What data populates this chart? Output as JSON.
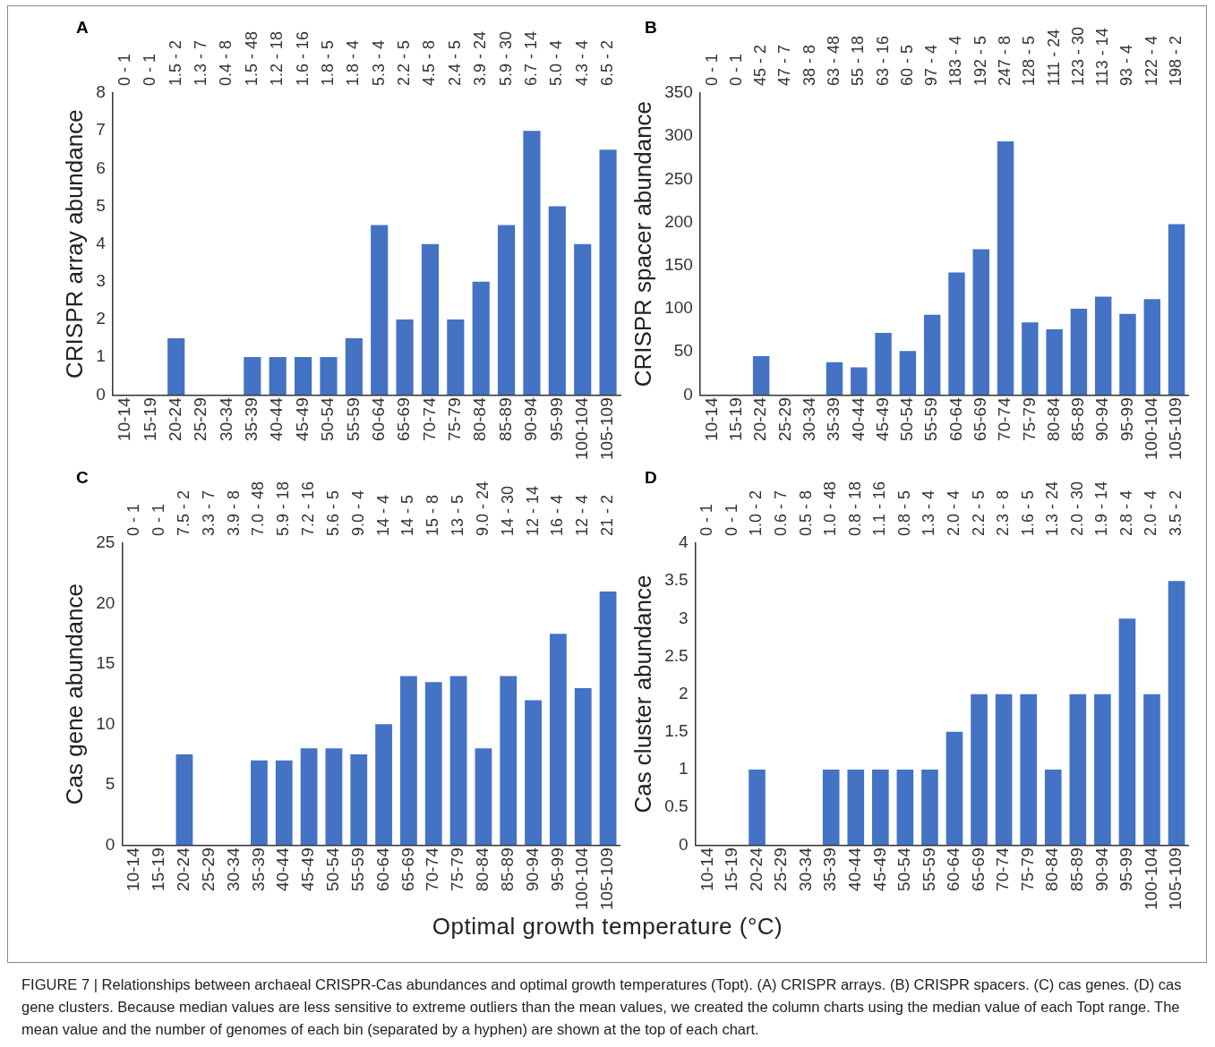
{
  "chart_data": [
    {
      "type": "bar",
      "title": "A",
      "ylabel": "CRISPR array abundance",
      "categories": [
        "10-14",
        "15-19",
        "20-24",
        "25-29",
        "30-34",
        "35-39",
        "40-44",
        "45-49",
        "50-54",
        "55-59",
        "60-64",
        "65-69",
        "70-74",
        "75-79",
        "80-84",
        "85-89",
        "90-94",
        "95-99",
        "100-104",
        "105-109"
      ],
      "values": [
        0,
        0,
        1.5,
        0,
        0,
        1,
        1,
        1,
        1,
        1.5,
        4.5,
        2,
        4,
        2,
        3,
        4.5,
        7,
        5,
        4,
        6.5
      ],
      "color": "#4472c4",
      "ylim": [
        0,
        8
      ],
      "yticks": [
        0,
        1,
        2,
        3,
        4,
        5,
        6,
        7,
        8
      ],
      "grid": false,
      "annotations": [
        "0 - 1",
        "0 - 1",
        "1.5 - 2",
        "1.3 - 7",
        "0.4 - 8",
        "1.5 - 48",
        "1.2 - 18",
        "1.6 - 16",
        "1.8 - 5",
        "1.8 - 4",
        "5.3 - 4",
        "2.2 - 5",
        "4.5 - 8",
        "2.4 - 5",
        "3.9 - 24",
        "5.9 - 30",
        "6.7 - 14",
        "5.0 - 4",
        "4.3 - 4",
        "6.5 - 2"
      ]
    },
    {
      "type": "bar",
      "title": "B",
      "ylabel": "CRISPR spacer abundance",
      "categories": [
        "10-14",
        "15-19",
        "20-24",
        "25-29",
        "30-34",
        "35-39",
        "40-44",
        "45-49",
        "50-54",
        "55-59",
        "60-64",
        "65-69",
        "70-74",
        "75-79",
        "80-84",
        "85-89",
        "90-94",
        "95-99",
        "100-104",
        "105-109"
      ],
      "values": [
        0,
        0,
        45,
        0,
        0,
        38,
        32,
        72,
        51,
        93,
        142,
        169,
        294,
        84,
        76,
        100,
        114,
        94,
        111,
        198
      ],
      "color": "#4472c4",
      "ylim": [
        0,
        350
      ],
      "yticks": [
        0,
        50,
        100,
        150,
        200,
        250,
        300,
        350
      ],
      "grid": false,
      "annotations": [
        "0 - 1",
        "0 - 1",
        "45 - 2",
        "47 - 7",
        "38 - 8",
        "63 - 48",
        "55 - 18",
        "63 - 16",
        "60 - 5",
        "97 - 4",
        "183 - 4",
        "192 - 5",
        "247 - 8",
        "128 - 5",
        "111 - 24",
        "123 - 30",
        "113 - 14",
        "93 - 4",
        "122 - 4",
        "198 - 2"
      ]
    },
    {
      "type": "bar",
      "title": "C",
      "ylabel": "Cas gene abundance",
      "xlabel": "Optimal growth temperature (°C)",
      "categories": [
        "10-14",
        "15-19",
        "20-24",
        "25-29",
        "30-34",
        "35-39",
        "40-44",
        "45-49",
        "50-54",
        "55-59",
        "60-64",
        "65-69",
        "70-74",
        "75-79",
        "80-84",
        "85-89",
        "90-94",
        "95-99",
        "100-104",
        "105-109"
      ],
      "values": [
        0,
        0,
        7.5,
        0,
        0,
        7,
        7,
        8,
        8,
        7.5,
        10,
        14,
        13.5,
        14,
        8,
        14,
        12,
        17.5,
        13,
        21
      ],
      "color": "#4472c4",
      "ylim": [
        0,
        25
      ],
      "yticks": [
        0,
        5,
        10,
        15,
        20,
        25
      ],
      "grid": false,
      "annotations": [
        "0 - 1",
        "0 - 1",
        "7.5 - 2",
        "3.3 - 7",
        "3.9 - 8",
        "7.0 - 48",
        "5.9 - 18",
        "7.2 - 16",
        "5.6 - 5",
        "9.0 - 4",
        "14 - 4",
        "14 - 5",
        "15 - 8",
        "13 - 5",
        "9.0 - 24",
        "14 - 30",
        "12 - 14",
        "16 - 4",
        "12 - 4",
        "21 - 2"
      ]
    },
    {
      "type": "bar",
      "title": "D",
      "ylabel": "Cas cluster abundance",
      "categories": [
        "10-14",
        "15-19",
        "20-24",
        "25-29",
        "30-34",
        "35-39",
        "40-44",
        "45-49",
        "50-54",
        "55-59",
        "60-64",
        "65-69",
        "70-74",
        "75-79",
        "80-84",
        "85-89",
        "90-94",
        "95-99",
        "100-104",
        "105-109"
      ],
      "values": [
        0,
        0,
        1,
        0,
        0,
        1,
        1,
        1,
        1,
        1,
        1.5,
        2,
        2,
        2,
        1,
        2,
        2,
        3,
        2,
        3.5
      ],
      "color": "#4472c4",
      "ylim": [
        0,
        4
      ],
      "yticks": [
        0,
        0.5,
        1,
        1.5,
        2,
        2.5,
        3,
        3.5,
        4
      ],
      "grid": false,
      "annotations": [
        "0 - 1",
        "0 - 1",
        "1.0 - 2",
        "0.6 - 7",
        "0.5 - 8",
        "1.0 - 48",
        "0.8 - 18",
        "1.1 - 16",
        "0.8 - 5",
        "1.3 - 4",
        "2.0 - 4",
        "2.2 - 5",
        "2.3 - 8",
        "1.6 - 5",
        "1.3 - 24",
        "2.0 - 30",
        "1.9 - 14",
        "2.8 - 4",
        "2.0 - 4",
        "3.5 - 2",
        "FIGURE 7 | Relationships between archaeal CRISPR-Cas abundances and optimal growth temperatures (Topt). (A) CRISPR arrays. (B) CRISPR spacers. (C) cas genes. (D) cas gene clusters. Because median values are less sensitive to extreme outliers than the mean values, we created the column charts using the median value of each Topt range. The mean value and the number of genomes of each bin (separated by a hyphen) are shown at the top of each chart."
      ]
    }
  ]
}
